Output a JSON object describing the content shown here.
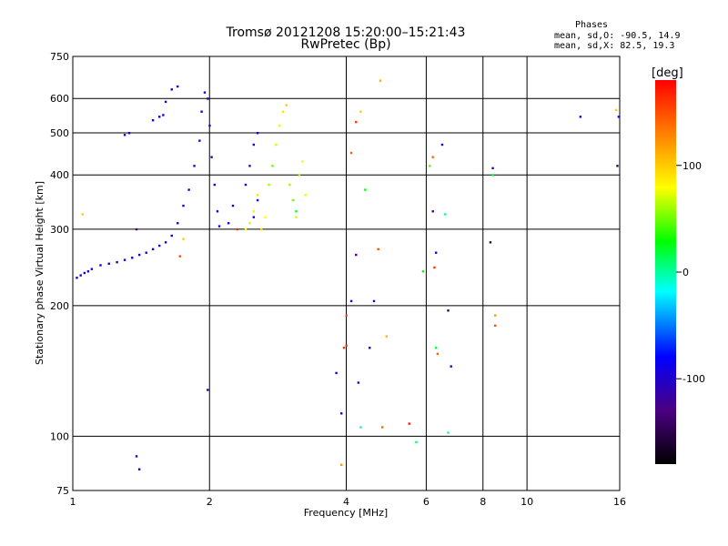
{
  "header": {
    "title_line1": "Tromsø 20121208 15:20:00–15:21:43",
    "title_line2": "RwPretec (Bp)",
    "stats_title": "Phases",
    "stats_line1": "mean, sd,O: -90.5, 14.9",
    "stats_line2": "mean, sd,X:  82.5, 19.3"
  },
  "colorbar": {
    "unit": "[deg]",
    "ticks": [
      "100",
      "0",
      "-100"
    ],
    "range": [
      -180,
      180
    ],
    "colors": [
      "#000000",
      "#4b0082",
      "#0000ff",
      "#00ffff",
      "#00ff00",
      "#ffff00",
      "#ff8000",
      "#ff0000"
    ]
  },
  "chart_data": {
    "type": "scatter",
    "title": "Tromsø 20121208 15:20:00–15:21:43",
    "subtitle": "RwPretec (Bp)",
    "xlabel": "Frequency [MHz]",
    "ylabel": "Stationary phase Virtual Height [km]",
    "xscale": "log",
    "yscale": "log",
    "xlim": [
      1,
      16
    ],
    "ylim": [
      75,
      750
    ],
    "xticks": [
      {
        "v": 1,
        "label": "1"
      },
      {
        "v": 2,
        "label": "2"
      },
      {
        "v": 4,
        "label": "4"
      },
      {
        "v": 6,
        "label": "6"
      },
      {
        "v": 8,
        "label": "8"
      },
      {
        "v": 10,
        "label": "10"
      },
      {
        "v": 16,
        "label": "16"
      }
    ],
    "yticks": [
      {
        "v": 75,
        "label": "75"
      },
      {
        "v": 100,
        "label": "100"
      },
      {
        "v": 200,
        "label": "200"
      },
      {
        "v": 300,
        "label": "300"
      },
      {
        "v": 400,
        "label": "400"
      },
      {
        "v": 500,
        "label": "500"
      },
      {
        "v": 600,
        "label": "600"
      },
      {
        "v": 750,
        "label": "750"
      }
    ],
    "grid": true,
    "color_variable": "phase [deg]",
    "points": [
      [
        1.02,
        232,
        -100
      ],
      [
        1.04,
        235,
        -95
      ],
      [
        1.06,
        238,
        -98
      ],
      [
        1.08,
        240,
        -92
      ],
      [
        1.1,
        243,
        -100
      ],
      [
        1.15,
        248,
        -95
      ],
      [
        1.2,
        250,
        -100
      ],
      [
        1.25,
        252,
        -95
      ],
      [
        1.3,
        255,
        -98
      ],
      [
        1.35,
        258,
        -100
      ],
      [
        1.38,
        300,
        -130
      ],
      [
        1.4,
        262,
        -95
      ],
      [
        1.45,
        265,
        -100
      ],
      [
        1.5,
        270,
        -92
      ],
      [
        1.55,
        275,
        -98
      ],
      [
        1.6,
        280,
        -100
      ],
      [
        1.65,
        290,
        -95
      ],
      [
        1.7,
        310,
        -100
      ],
      [
        1.75,
        340,
        -95
      ],
      [
        1.8,
        370,
        -100
      ],
      [
        1.85,
        420,
        -95
      ],
      [
        1.9,
        480,
        -100
      ],
      [
        1.92,
        560,
        -95
      ],
      [
        1.95,
        620,
        -100
      ],
      [
        1.98,
        600,
        -95
      ],
      [
        2.0,
        520,
        -100
      ],
      [
        2.02,
        440,
        -95
      ],
      [
        2.05,
        380,
        -100
      ],
      [
        2.08,
        330,
        -95
      ],
      [
        2.1,
        305,
        -100
      ],
      [
        1.6,
        590,
        -100
      ],
      [
        1.65,
        630,
        -95
      ],
      [
        1.7,
        640,
        -100
      ],
      [
        1.58,
        550,
        -95
      ],
      [
        1.3,
        495,
        -100
      ],
      [
        1.33,
        500,
        -95
      ],
      [
        1.5,
        535,
        -100
      ],
      [
        1.55,
        545,
        -100
      ],
      [
        1.72,
        260,
        150
      ],
      [
        1.75,
        285,
        100
      ],
      [
        2.4,
        380,
        -105
      ],
      [
        2.45,
        420,
        -100
      ],
      [
        2.5,
        470,
        -95
      ],
      [
        2.55,
        500,
        -90
      ],
      [
        2.5,
        320,
        -100
      ],
      [
        2.55,
        350,
        -95
      ],
      [
        2.2,
        310,
        -90
      ],
      [
        2.25,
        340,
        -100
      ],
      [
        2.4,
        300,
        80
      ],
      [
        2.45,
        310,
        70
      ],
      [
        2.5,
        330,
        85
      ],
      [
        2.55,
        360,
        90
      ],
      [
        2.6,
        300,
        95
      ],
      [
        2.65,
        320,
        80
      ],
      [
        2.7,
        380,
        60
      ],
      [
        2.75,
        420,
        50
      ],
      [
        2.8,
        470,
        70
      ],
      [
        2.85,
        520,
        85
      ],
      [
        2.9,
        560,
        90
      ],
      [
        2.95,
        580,
        100
      ],
      [
        3.0,
        380,
        60
      ],
      [
        3.05,
        350,
        50
      ],
      [
        3.1,
        320,
        70
      ],
      [
        3.15,
        400,
        60
      ],
      [
        3.2,
        430,
        80
      ],
      [
        3.25,
        360,
        75
      ],
      [
        2.3,
        300,
        160
      ],
      [
        3.1,
        330,
        20
      ],
      [
        1.05,
        325,
        100
      ],
      [
        1.38,
        90,
        -100
      ],
      [
        1.4,
        84,
        -100
      ],
      [
        1.98,
        128,
        -100
      ],
      [
        3.8,
        140,
        -100
      ],
      [
        3.9,
        86,
        120
      ],
      [
        3.9,
        113,
        -100
      ],
      [
        3.95,
        160,
        160
      ],
      [
        4.0,
        162,
        160
      ],
      [
        4.0,
        190,
        150
      ],
      [
        4.1,
        450,
        140
      ],
      [
        4.2,
        530,
        160
      ],
      [
        4.3,
        560,
        100
      ],
      [
        4.4,
        370,
        30
      ],
      [
        4.2,
        262,
        -120
      ],
      [
        4.25,
        133,
        -100
      ],
      [
        4.3,
        105,
        -10
      ],
      [
        4.1,
        205,
        -100
      ],
      [
        4.5,
        160,
        -100
      ],
      [
        4.6,
        205,
        -100
      ],
      [
        4.7,
        270,
        150
      ],
      [
        4.8,
        105,
        140
      ],
      [
        4.75,
        660,
        110
      ],
      [
        4.9,
        170,
        110
      ],
      [
        5.5,
        107,
        170
      ],
      [
        5.7,
        97,
        10
      ],
      [
        5.9,
        240,
        30
      ],
      [
        6.1,
        420,
        50
      ],
      [
        6.2,
        440,
        140
      ],
      [
        6.2,
        330,
        -120
      ],
      [
        6.3,
        265,
        -100
      ],
      [
        6.25,
        245,
        160
      ],
      [
        6.3,
        160,
        20
      ],
      [
        6.35,
        155,
        140
      ],
      [
        6.5,
        470,
        -100
      ],
      [
        6.6,
        325,
        0
      ],
      [
        6.7,
        195,
        -140
      ],
      [
        6.8,
        145,
        -100
      ],
      [
        6.7,
        102,
        0
      ],
      [
        8.3,
        280,
        -150
      ],
      [
        8.4,
        415,
        -120
      ],
      [
        8.5,
        190,
        120
      ],
      [
        8.5,
        180,
        150
      ],
      [
        8.4,
        400,
        20
      ],
      [
        13.1,
        545,
        -100
      ],
      [
        15.7,
        565,
        100
      ],
      [
        15.9,
        545,
        -100
      ],
      [
        15.8,
        420,
        -150
      ]
    ]
  }
}
